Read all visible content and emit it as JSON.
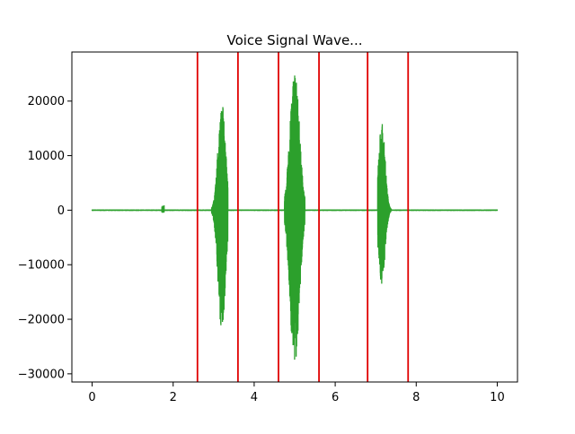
{
  "chart_data": {
    "type": "line",
    "title": "Voice Signal Wave...",
    "xlabel": "",
    "ylabel": "",
    "xlim": [
      -0.5,
      10.5
    ],
    "ylim": [
      -31500,
      29000
    ],
    "grid": false,
    "x_ticks": [
      0,
      2,
      4,
      6,
      8,
      10
    ],
    "y_ticks": [
      -30000,
      -20000,
      -10000,
      0,
      10000,
      20000
    ],
    "series": [
      {
        "color": "#2ca02c",
        "segments": [
          {
            "x_start": 0.0,
            "x_end": 2.55,
            "amplitude": 150
          },
          {
            "x_start": 1.72,
            "x_end": 1.78,
            "amplitude_max": 900,
            "amplitude_min": -500
          },
          {
            "x_start": 2.95,
            "x_end": 3.35,
            "peak_time": 3.2,
            "max": 19800,
            "min": -23000
          },
          {
            "x_start": 4.75,
            "x_end": 5.25,
            "peak_time": 5.0,
            "max": 26300,
            "min": -29000
          },
          {
            "x_start": 7.05,
            "x_end": 7.4,
            "peak_time": 7.15,
            "max": 16500,
            "min": -14000
          },
          {
            "x_start": 7.4,
            "x_end": 10.0,
            "amplitude": 150
          }
        ]
      }
    ],
    "vertical_lines": {
      "color": "#e00000",
      "x": [
        2.6,
        3.6,
        4.6,
        5.6,
        6.8,
        7.8
      ]
    },
    "tick_labels": {
      "x": [
        "0",
        "2",
        "4",
        "6",
        "8",
        "10"
      ],
      "y": [
        "−30000",
        "−20000",
        "−10000",
        "0",
        "10000",
        "20000"
      ]
    }
  }
}
